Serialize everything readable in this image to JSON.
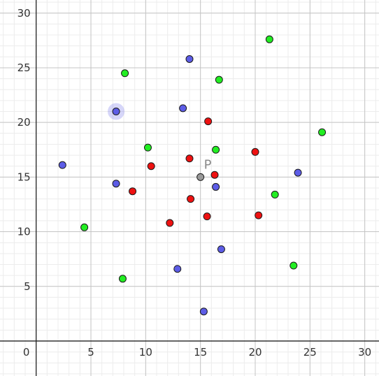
{
  "chart_data": {
    "type": "scatter",
    "xlim": [
      -3.3,
      31.3
    ],
    "ylim": [
      -3.2,
      31.2
    ],
    "grid": true,
    "minor_grid": true,
    "x_ticks": [
      0,
      5,
      10,
      15,
      20,
      25,
      30
    ],
    "y_ticks": [
      5,
      10,
      15,
      20,
      25,
      30
    ],
    "colors": {
      "blue": "#5c5ce6",
      "green": "#22ee22",
      "red": "#ee1111",
      "gray": "#999999"
    },
    "series": [
      {
        "color": "#5c5ce6",
        "points": [
          {
            "x": 14.0,
            "y": 25.8
          },
          {
            "x": 7.3,
            "y": 21.0
          },
          {
            "x": 13.4,
            "y": 21.3
          },
          {
            "x": 2.4,
            "y": 16.1
          },
          {
            "x": 7.3,
            "y": 14.4
          },
          {
            "x": 16.4,
            "y": 14.1
          },
          {
            "x": 23.9,
            "y": 15.4
          },
          {
            "x": 16.9,
            "y": 8.4
          },
          {
            "x": 12.9,
            "y": 6.6
          },
          {
            "x": 15.3,
            "y": 2.7
          }
        ]
      },
      {
        "color": "#22ee22",
        "points": [
          {
            "x": 21.3,
            "y": 27.6
          },
          {
            "x": 8.1,
            "y": 24.5
          },
          {
            "x": 16.7,
            "y": 23.9
          },
          {
            "x": 26.1,
            "y": 19.1
          },
          {
            "x": 10.2,
            "y": 17.7
          },
          {
            "x": 16.4,
            "y": 17.5
          },
          {
            "x": 21.8,
            "y": 13.4
          },
          {
            "x": 4.4,
            "y": 10.4
          },
          {
            "x": 23.5,
            "y": 6.9
          },
          {
            "x": 7.9,
            "y": 5.7
          }
        ]
      },
      {
        "color": "#ee1111",
        "points": [
          {
            "x": 15.7,
            "y": 20.1
          },
          {
            "x": 20.0,
            "y": 17.3
          },
          {
            "x": 14.0,
            "y": 16.7
          },
          {
            "x": 10.5,
            "y": 16.0
          },
          {
            "x": 16.3,
            "y": 15.2
          },
          {
            "x": 8.8,
            "y": 13.7
          },
          {
            "x": 14.1,
            "y": 13.0
          },
          {
            "x": 12.2,
            "y": 10.8
          },
          {
            "x": 15.6,
            "y": 11.4
          },
          {
            "x": 20.3,
            "y": 11.5
          }
        ]
      }
    ],
    "special_point": {
      "label": "P",
      "x": 15.0,
      "y": 15.0,
      "color": "#999999"
    },
    "highlighted": {
      "x": 7.3,
      "y": 21.0
    }
  }
}
